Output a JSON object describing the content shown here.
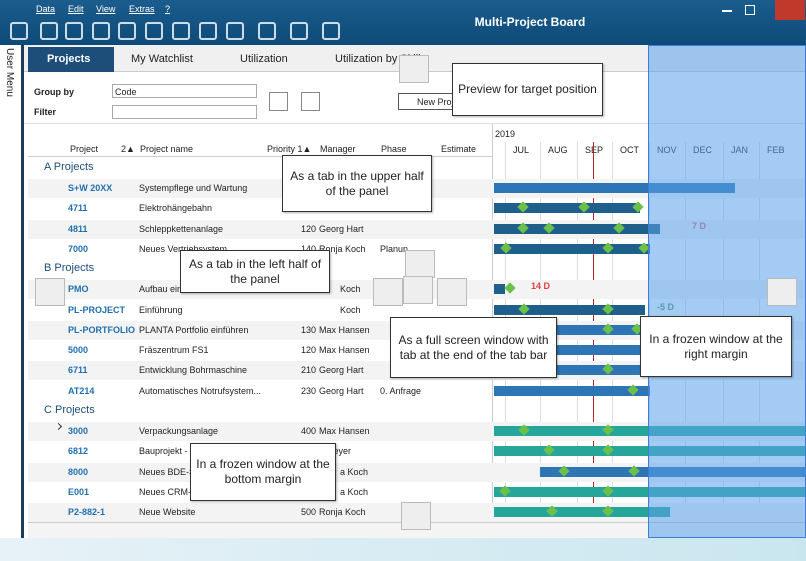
{
  "menu": [
    "Data",
    "Edit",
    "View",
    "Extras",
    "?"
  ],
  "title": "Multi-Project Board",
  "side_menu": "User Menu",
  "tabs": [
    "Projects",
    "My Watchlist",
    "Utilization",
    "Utilization by Skills"
  ],
  "filters": {
    "group_by_label": "Group by",
    "group_by_value": "Code",
    "filter_label": "Filter"
  },
  "new_button": "New Proj",
  "columns": [
    "Project",
    "2▲",
    "Project name",
    "Priority 1▲",
    "Manager",
    "Phase",
    "Estimate"
  ],
  "gantt": {
    "year": "2019",
    "months": [
      "JUL",
      "AUG",
      "SEP",
      "OCT",
      "NOV",
      "DEC",
      "JAN",
      "FEB"
    ],
    "labels": [
      "7 D",
      "14 D",
      "-5 D"
    ]
  },
  "groups": [
    {
      "name": "A Projects",
      "rows": [
        {
          "code": "S+W 20XX",
          "name": "Systempflege und Wartung"
        },
        {
          "code": "4711",
          "name": "Elektrohängebahn"
        },
        {
          "code": "4811",
          "name": "Schleppkettenanlage",
          "priority": "120",
          "manager": "Georg Hart"
        },
        {
          "code": "7000",
          "name": "Neues Vertriebsystem",
          "priority": "140",
          "manager": "Ronja Koch",
          "phase": "Planun"
        }
      ]
    },
    {
      "name": "B Projects",
      "rows": [
        {
          "code": "PMO",
          "name": "Aufbau ein",
          "manager": "Koch"
        },
        {
          "code": "PL-PROJECT",
          "name": "Einführung",
          "manager": "Koch"
        },
        {
          "code": "PL-PORTFOLIO",
          "name": "PLANTA Portfolio einführen",
          "priority": "130",
          "manager": "Max Hansen"
        },
        {
          "code": "5000",
          "name": "Fräszentrum FS1",
          "priority": "120",
          "manager": "Max Hansen"
        },
        {
          "code": "6711",
          "name": "Entwicklung Bohrmaschine",
          "priority": "210",
          "manager": "Georg Hart"
        },
        {
          "code": "AT214",
          "name": "Automatisches Notrufsystem...",
          "priority": "230",
          "manager": "Georg Hart",
          "phase": "0. Anfrage"
        }
      ]
    },
    {
      "name": "C Projects",
      "rows": [
        {
          "code": "3000",
          "name": "Verpackungsanlage",
          "priority": "400",
          "manager": "Max Hansen"
        },
        {
          "code": "6812",
          "name": "Bauprojekt -",
          "manager": "lf Meyer"
        },
        {
          "code": "8000",
          "name": "Neues BDE-S",
          "manager": "a Koch"
        },
        {
          "code": "E001",
          "name": "Neues CRM-S",
          "manager": "a Koch"
        },
        {
          "code": "P2-882-1",
          "name": "Neue Website",
          "priority": "500",
          "manager": "Ronja Koch"
        }
      ]
    }
  ],
  "callouts": [
    "Preview for target position",
    "As a tab in the upper half of the panel",
    "As a tab in the left half of the panel",
    "As a full screen window with tab at the end of the tab bar",
    "In a frozen window at the right margin",
    "In a frozen window at the bottom margin"
  ]
}
